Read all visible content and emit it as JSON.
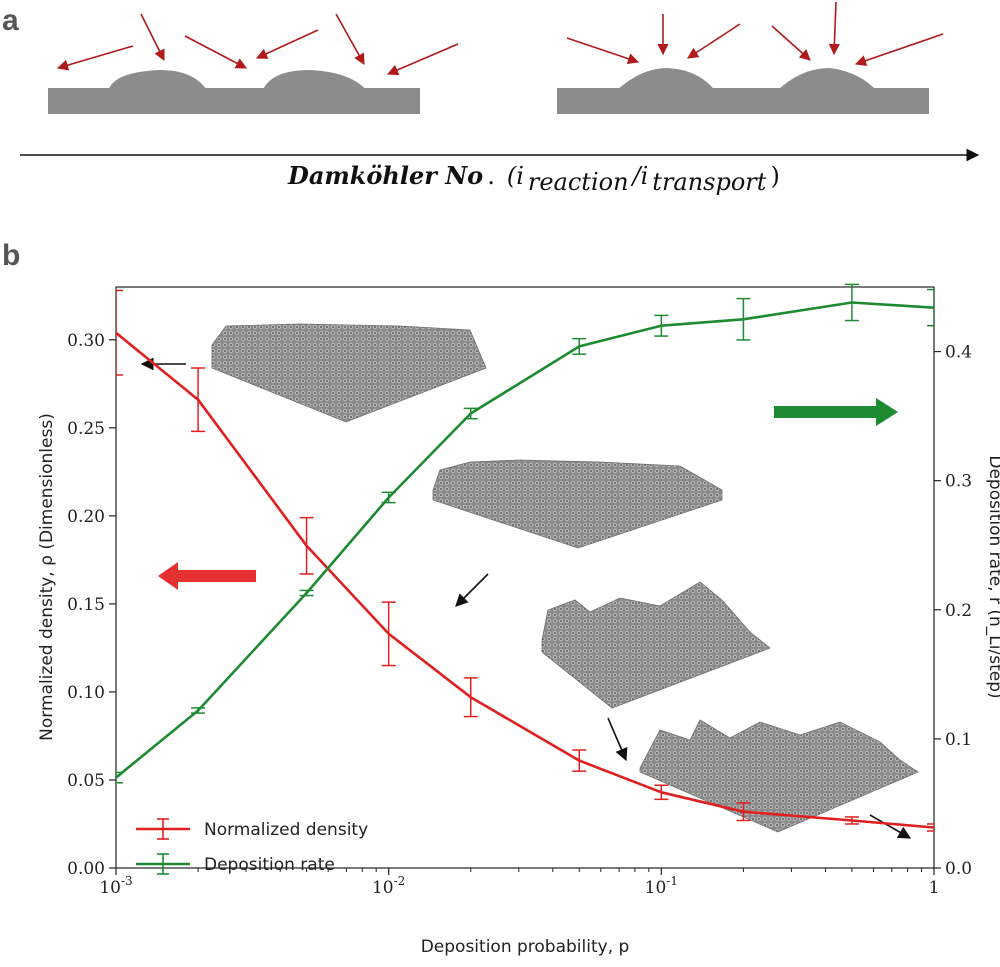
{
  "panel_a": {
    "label": "a",
    "axis_label_main": "Damköhler No",
    "axis_label_dot": ".",
    "axis_label_open": "(i",
    "axis_label_sub1": "reaction",
    "axis_label_slash": "/i",
    "axis_label_sub2": "transport",
    "axis_label_close": ")"
  },
  "panel_b": {
    "label": "b"
  },
  "colors": {
    "density": "#e02020",
    "rate": "#1e8a32",
    "annotation_arrow": "#b01a1a",
    "substrate": "#8c8c8c",
    "cluster": "#7a7a7a"
  },
  "chart_data": {
    "type": "line",
    "x_scale": "log",
    "xlabel": "Deposition probability, p",
    "ylabel_left": "Normalized density, ρ (Dimensionless)",
    "ylabel_right": "Deposition rate, r (n_Li/step)",
    "x_tick_labels": [
      "10^-3",
      "10^-2",
      "10^-1",
      "1"
    ],
    "y_left_tick_labels": [
      "0.00",
      "0.05",
      "0.10",
      "0.15",
      "0.20",
      "0.25",
      "0.30"
    ],
    "y_right_tick_labels": [
      "0.0",
      "0.1",
      "0.2",
      "0.3",
      "0.4"
    ],
    "xlim": [
      0.001,
      1
    ],
    "ylim_left": [
      0.0,
      0.33
    ],
    "ylim_right": [
      0.0,
      0.45
    ],
    "x": [
      0.001,
      0.002,
      0.005,
      0.01,
      0.02,
      0.05,
      0.1,
      0.2,
      0.5,
      1
    ],
    "series": [
      {
        "name": "Normalized density",
        "axis": "left",
        "values": [
          0.304,
          0.266,
          0.183,
          0.133,
          0.097,
          0.061,
          0.043,
          0.032,
          0.027,
          0.023
        ],
        "errors": [
          0.024,
          0.018,
          0.016,
          0.018,
          0.011,
          0.006,
          0.004,
          0.005,
          0.002,
          0.002
        ]
      },
      {
        "name": "Deposition rate",
        "axis": "right",
        "values": [
          0.07,
          0.122,
          0.213,
          0.287,
          0.352,
          0.404,
          0.42,
          0.425,
          0.438,
          0.434
        ],
        "errors": [
          0.004,
          0.002,
          0.002,
          0.004,
          0.004,
          0.006,
          0.008,
          0.016,
          0.014,
          0.014
        ]
      }
    ],
    "legend": {
      "placement": "lower-left",
      "entries": [
        "Normalized density",
        "Deposition rate"
      ]
    }
  }
}
